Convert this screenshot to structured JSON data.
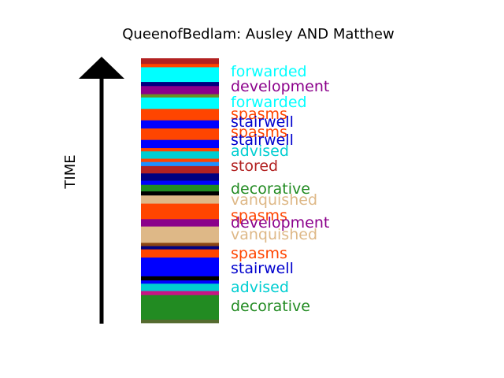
{
  "chart_data": {
    "type": "bar",
    "title": "QueenofBedlam: Ausley AND Matthew",
    "ylabel": "TIME",
    "segments": [
      {
        "color": "#b22222",
        "h": 7
      },
      {
        "color": "#ff4500",
        "h": 4
      },
      {
        "color": "#00ffff",
        "h": 18
      },
      {
        "color": "#000080",
        "h": 5
      },
      {
        "color": "#8b008b",
        "h": 10
      },
      {
        "color": "#6b8e23",
        "h": 4
      },
      {
        "color": "#00ffff",
        "h": 14
      },
      {
        "color": "#ff4500",
        "h": 14
      },
      {
        "color": "#0000ff",
        "h": 10
      },
      {
        "color": "#ff4500",
        "h": 14
      },
      {
        "color": "#0000ff",
        "h": 10
      },
      {
        "color": "#ff4500",
        "h": 4
      },
      {
        "color": "#00ced1",
        "h": 9
      },
      {
        "color": "#ff4500",
        "h": 4
      },
      {
        "color": "#1e90ff",
        "h": 5
      },
      {
        "color": "#b22222",
        "h": 9
      },
      {
        "color": "#000080",
        "h": 9
      },
      {
        "color": "#0000ff",
        "h": 5
      },
      {
        "color": "#228b22",
        "h": 8
      },
      {
        "color": "#000000",
        "h": 5
      },
      {
        "color": "#deb887",
        "h": 10
      },
      {
        "color": "#ff4500",
        "h": 19
      },
      {
        "color": "#8b008b",
        "h": 9
      },
      {
        "color": "#deb887",
        "h": 20
      },
      {
        "color": "#8b4513",
        "h": 4
      },
      {
        "color": "#000080",
        "h": 4
      },
      {
        "color": "#ff4500",
        "h": 10
      },
      {
        "color": "#0000ff",
        "h": 23
      },
      {
        "color": "#000000",
        "h": 5
      },
      {
        "color": "#0000ff",
        "h": 4
      },
      {
        "color": "#00ced1",
        "h": 9
      },
      {
        "color": "#c71585",
        "h": 5
      },
      {
        "color": "#228b22",
        "h": 30
      },
      {
        "color": "#556b2f",
        "h": 4
      }
    ],
    "labels": [
      {
        "text": "forwarded",
        "color": "#00ffff"
      },
      {
        "text": "development",
        "color": "#8b008b"
      },
      {
        "text": "forwarded",
        "color": "#00ffff"
      },
      {
        "text": "spasms",
        "color": "#ff4500"
      },
      {
        "text": "stairwell",
        "color": "#0000cd"
      },
      {
        "text": "spasms",
        "color": "#ff4500"
      },
      {
        "text": "stairwell",
        "color": "#0000cd"
      },
      {
        "text": "advised",
        "color": "#00ced1"
      },
      {
        "text": "stored",
        "color": "#b22222"
      },
      {
        "text": "decorative",
        "color": "#228b22"
      },
      {
        "text": "vanquished",
        "color": "#deb887"
      },
      {
        "text": "spasms",
        "color": "#ff4500"
      },
      {
        "text": "development",
        "color": "#8b008b"
      },
      {
        "text": "vanquished",
        "color": "#deb887"
      },
      {
        "text": "spasms",
        "color": "#ff4500"
      },
      {
        "text": "stairwell",
        "color": "#0000cd"
      },
      {
        "text": "advised",
        "color": "#00ced1"
      },
      {
        "text": "decorative",
        "color": "#228b22"
      }
    ]
  }
}
